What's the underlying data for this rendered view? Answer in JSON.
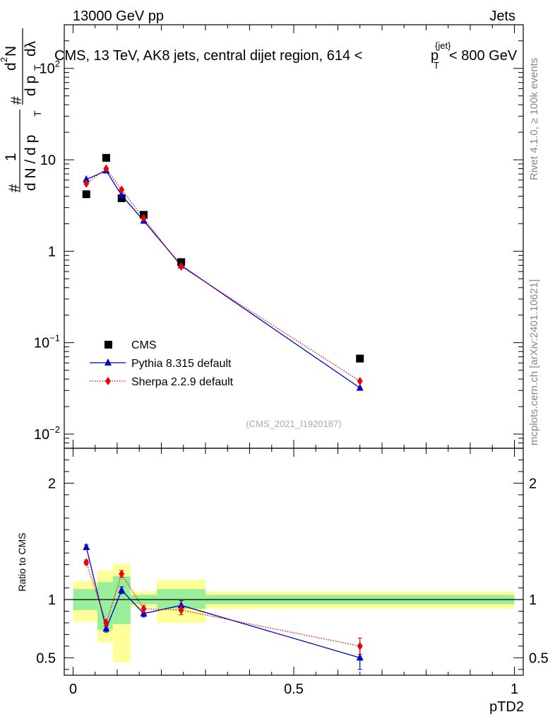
{
  "header": {
    "left": "13000 GeV pp",
    "right": "Jets"
  },
  "side_labels": {
    "rivet": "Rivet 4.1.0, ≥ 100k events",
    "mcplots": "mcplots.cern.ch [arXiv:2401.10621]"
  },
  "chart_data": {
    "type": "scatter",
    "title": "CMS, 13 TeV, AK8 jets, central dijet region, 614 < p_T^{jet} < 800 GeV",
    "title_parts": {
      "main": "CMS, 13 TeV, AK8 jets, central dijet region, 614 <",
      "p": "p",
      "sub": "T",
      "sup": "{jet}",
      "tail": "< 800 GeV"
    },
    "watermark": "(CMS_2021_I1920187)",
    "xlabel": "pTD2",
    "ylabel_parts": {
      "hash": "#",
      "one": "1",
      "denom": "d N / d p",
      "sub": "T",
      "num_d2": "d",
      "num_sup": "2",
      "num_N": "N",
      "right_den": "d p",
      "lambda": "dλ"
    },
    "xlim": [
      -0.02,
      1.02
    ],
    "upper": {
      "yscale": "log",
      "ylim": [
        0.007,
        300
      ],
      "yticks": [
        {
          "v": 0.01,
          "base": "10",
          "exp": "−2"
        },
        {
          "v": 0.1,
          "base": "10",
          "exp": "−1"
        },
        {
          "v": 1,
          "base": "1",
          "exp": ""
        },
        {
          "v": 10,
          "base": "10",
          "exp": ""
        },
        {
          "v": 100,
          "base": "10",
          "exp": "2"
        }
      ],
      "series": [
        {
          "name": "CMS",
          "style": "data",
          "color": "#000000",
          "x": [
            0.03,
            0.075,
            0.11,
            0.16,
            0.245,
            0.65
          ],
          "y": [
            4.2,
            10.5,
            3.8,
            2.5,
            0.76,
            0.067
          ]
        },
        {
          "name": "Pythia 8.315 default",
          "style": "solid",
          "color": "#0000cc",
          "x": [
            0.03,
            0.075,
            0.11,
            0.16,
            0.245,
            0.65
          ],
          "y": [
            6.1,
            7.6,
            4.1,
            2.15,
            0.7,
            0.032
          ]
        },
        {
          "name": "Sherpa 2.2.9 default",
          "style": "dotted",
          "color": "#ee0000",
          "x": [
            0.03,
            0.075,
            0.11,
            0.16,
            0.245,
            0.65
          ],
          "y": [
            5.5,
            8.0,
            4.7,
            2.3,
            0.68,
            0.038
          ]
        }
      ]
    },
    "ratio": {
      "ylabel": "Ratio to CMS",
      "ylim": [
        0.35,
        2.3
      ],
      "yticks": [
        {
          "v": 0.5,
          "label": "0.5"
        },
        {
          "v": 1,
          "label": "1"
        },
        {
          "v": 2,
          "label": "2"
        }
      ],
      "xticks": [
        {
          "v": 0,
          "label": "0"
        },
        {
          "v": 0.5,
          "label": "0.5"
        },
        {
          "v": 1,
          "label": "1"
        }
      ],
      "bands": [
        {
          "x0": 0.0,
          "x1": 0.055,
          "y_lo": 0.81,
          "y_hi": 1.16,
          "g_lo": 0.91,
          "g_hi": 1.09
        },
        {
          "x0": 0.055,
          "x1": 0.09,
          "y_lo": 0.63,
          "y_hi": 1.25,
          "g_lo": 0.74,
          "g_hi": 1.15
        },
        {
          "x0": 0.09,
          "x1": 0.13,
          "y_lo": 0.46,
          "y_hi": 1.31,
          "g_lo": 0.79,
          "g_hi": 1.2
        },
        {
          "x0": 0.13,
          "x1": 0.19,
          "y_lo": 0.93,
          "y_hi": 1.07,
          "g_lo": 0.96,
          "g_hi": 1.04
        },
        {
          "x0": 0.19,
          "x1": 0.3,
          "y_lo": 0.8,
          "y_hi": 1.17,
          "g_lo": 0.92,
          "g_hi": 1.09
        },
        {
          "x0": 0.3,
          "x1": 1.0,
          "y_lo": 0.92,
          "y_hi": 1.07,
          "g_lo": 0.96,
          "g_hi": 1.04
        }
      ],
      "series": [
        {
          "name": "Pythia 8.315 default",
          "style": "solid",
          "color": "#0000cc",
          "x": [
            0.03,
            0.075,
            0.11,
            0.16,
            0.245,
            0.65
          ],
          "y": [
            1.45,
            0.75,
            1.08,
            0.88,
            0.95,
            0.5
          ],
          "err": [
            0.02,
            0.03,
            0.03,
            0.03,
            0.04,
            0.1
          ]
        },
        {
          "name": "Sherpa 2.2.9 default",
          "style": "dotted",
          "color": "#ee0000",
          "x": [
            0.03,
            0.075,
            0.11,
            0.16,
            0.245,
            0.65
          ],
          "y": [
            1.32,
            0.8,
            1.22,
            0.92,
            0.91,
            0.6
          ],
          "err": [
            0.02,
            0.03,
            0.03,
            0.03,
            0.04,
            0.07
          ]
        }
      ]
    },
    "legend": {
      "position": "middle-left",
      "entries": [
        "CMS",
        "Pythia 8.315 default",
        "Sherpa 2.2.9 default"
      ]
    }
  }
}
